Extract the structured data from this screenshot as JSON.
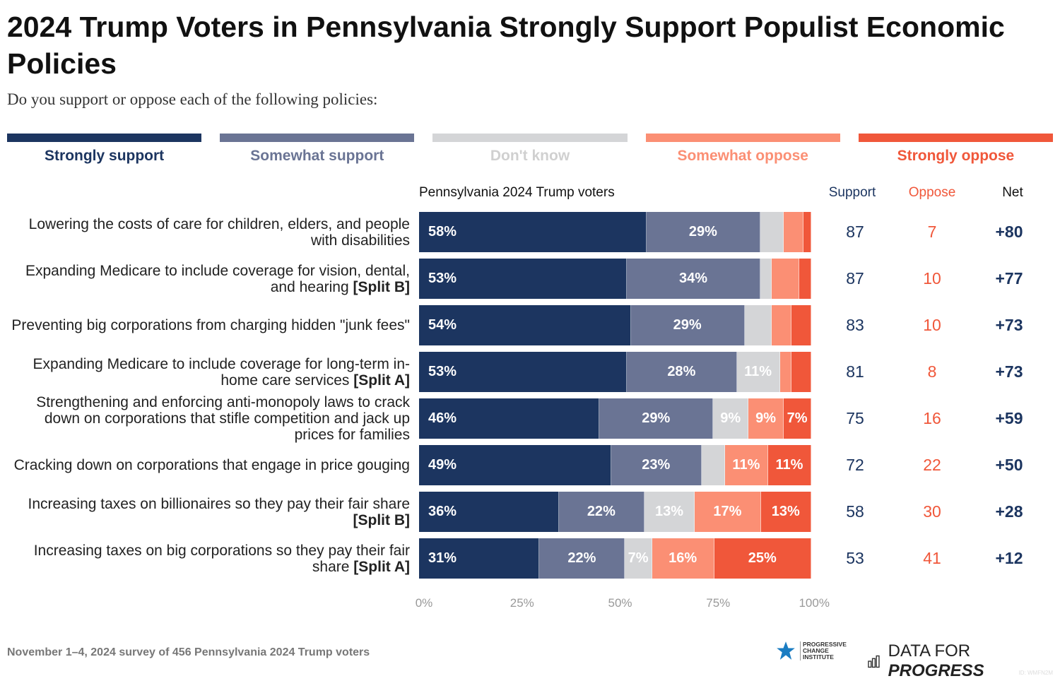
{
  "title": "2024 Trump Voters in Pennsylvania Strongly Support Populist Economic Policies",
  "subtitle": "Do you support or oppose each of the following policies:",
  "chart_data": {
    "type": "bar",
    "orientation": "horizontal-stacked",
    "group_label": "Pennsylvania 2024 Trump voters",
    "legend": [
      {
        "name": "Strongly support",
        "color": "#1c3560"
      },
      {
        "name": "Somewhat support",
        "color": "#6a7494"
      },
      {
        "name": "Don't know",
        "color": "#d4d5d7"
      },
      {
        "name": "Somewhat oppose",
        "color": "#fb8f74"
      },
      {
        "name": "Strongly oppose",
        "color": "#f0573a"
      }
    ],
    "summary_headers": {
      "support": "Support",
      "oppose": "Oppose",
      "net": "Net"
    },
    "rows": [
      {
        "label": "Lowering the costs of care for children, elders, and people with disabilities",
        "split": "",
        "values": [
          58,
          29,
          6,
          5,
          2
        ],
        "labeled": [
          true,
          true,
          false,
          false,
          false
        ],
        "support": "87",
        "oppose": "7",
        "net": "+80"
      },
      {
        "label": "Expanding Medicare to include coverage for vision, dental, and hearing",
        "split": "[Split B]",
        "values": [
          53,
          34,
          3,
          7,
          3
        ],
        "labeled": [
          true,
          true,
          false,
          false,
          false
        ],
        "support": "87",
        "oppose": "10",
        "net": "+77"
      },
      {
        "label": "Preventing big corporations from charging hidden \"junk fees\"",
        "split": "",
        "values": [
          54,
          29,
          7,
          5,
          5
        ],
        "labeled": [
          true,
          true,
          false,
          false,
          false
        ],
        "support": "83",
        "oppose": "10",
        "net": "+73"
      },
      {
        "label": "Expanding Medicare to include coverage for long-term in-home care services",
        "split": "[Split A]",
        "values": [
          53,
          28,
          11,
          3,
          5
        ],
        "labeled": [
          true,
          true,
          true,
          false,
          false
        ],
        "support": "81",
        "oppose": "8",
        "net": "+73"
      },
      {
        "label": "Strengthening and enforcing anti-monopoly laws to crack down on corporations that stifle competition and jack up prices for families",
        "split": "",
        "values": [
          46,
          29,
          9,
          9,
          7
        ],
        "labeled": [
          true,
          true,
          true,
          true,
          true
        ],
        "support": "75",
        "oppose": "16",
        "net": "+59"
      },
      {
        "label": "Cracking down on corporations that engage in price gouging",
        "split": "",
        "values": [
          49,
          23,
          6,
          11,
          11
        ],
        "labeled": [
          true,
          true,
          false,
          true,
          true
        ],
        "support": "72",
        "oppose": "22",
        "net": "+50"
      },
      {
        "label": "Increasing taxes on billionaires so they pay their fair share",
        "split": "[Split B]",
        "values": [
          36,
          22,
          13,
          17,
          13
        ],
        "labeled": [
          true,
          true,
          true,
          true,
          true
        ],
        "support": "58",
        "oppose": "30",
        "net": "+28"
      },
      {
        "label": "Increasing taxes on big corporations so they pay their fair share",
        "split": "[Split A]",
        "values": [
          31,
          22,
          7,
          16,
          25
        ],
        "labeled": [
          true,
          true,
          true,
          true,
          true
        ],
        "support": "53",
        "oppose": "41",
        "net": "+12"
      }
    ],
    "xticks": [
      "0%",
      "25%",
      "50%",
      "75%",
      "100%"
    ],
    "xlim": [
      0,
      100
    ]
  },
  "footer": {
    "source": "November 1–4, 2024 survey of 456 Pennsylvania 2024 Trump voters",
    "pci": "PROGRESSIVE CHANGE INSTITUTE",
    "dfp_a": "DATA FOR ",
    "dfp_b": "PROGRESS",
    "id": "ID: WMFN2M"
  },
  "colors": {
    "support_num": "#1c3560",
    "oppose_num": "#f0573a"
  }
}
